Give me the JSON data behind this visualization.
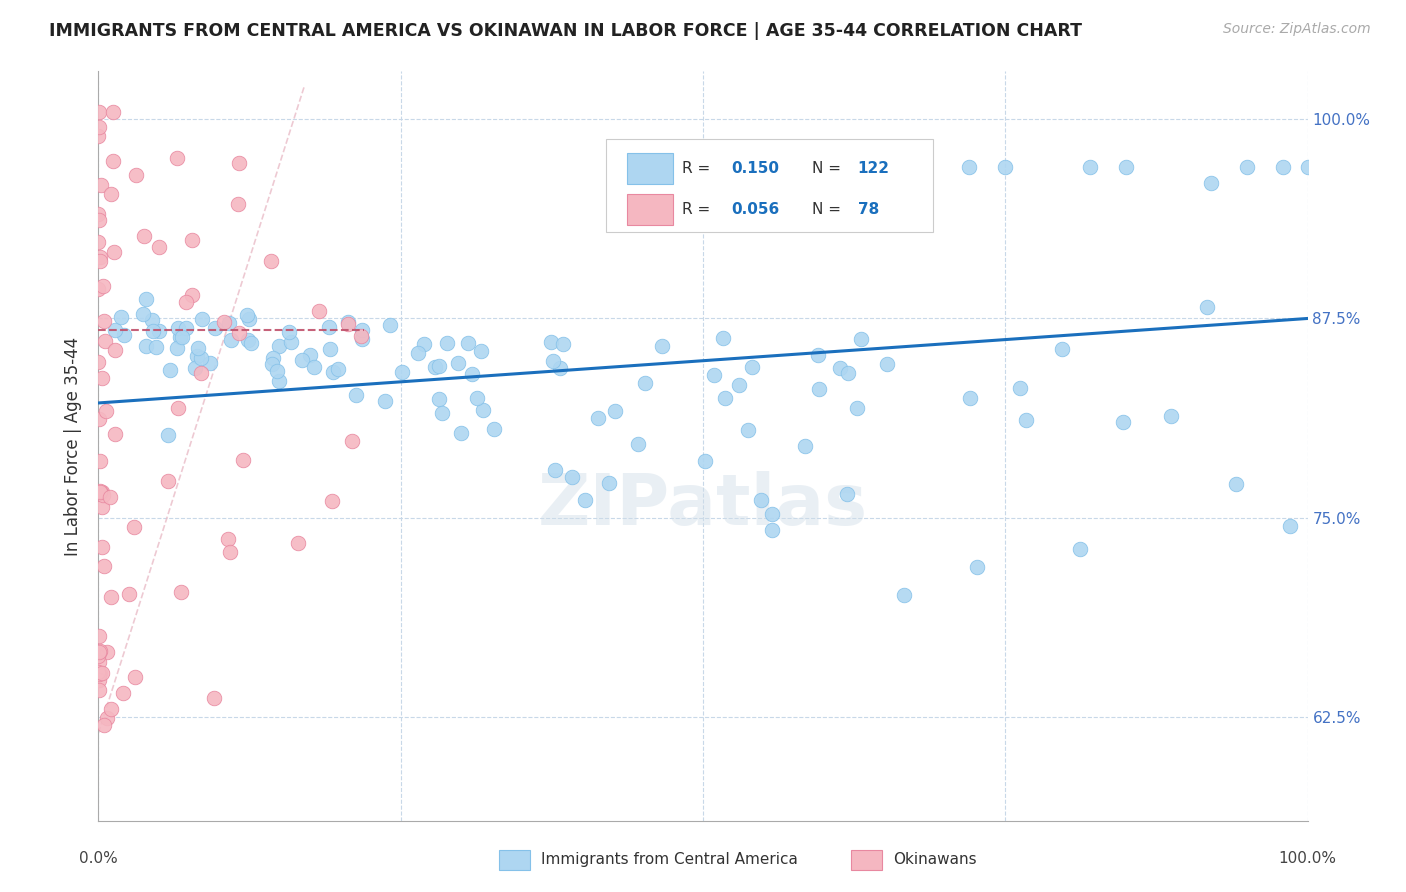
{
  "title": "IMMIGRANTS FROM CENTRAL AMERICA VS OKINAWAN IN LABOR FORCE | AGE 35-44 CORRELATION CHART",
  "source": "Source: ZipAtlas.com",
  "ylabel": "In Labor Force | Age 35-44",
  "xlim": [
    0.0,
    1.0
  ],
  "ylim": [
    0.56,
    1.03
  ],
  "ytick_positions": [
    0.625,
    0.75,
    0.875,
    1.0
  ],
  "ytick_labels": [
    "62.5%",
    "75.0%",
    "87.5%",
    "100.0%"
  ],
  "blue_color": "#aed6f1",
  "blue_edge_color": "#85c1e9",
  "blue_line_color": "#1a6fbd",
  "pink_color": "#f5b7c1",
  "pink_edge_color": "#e888a0",
  "pink_line_color": "#c0506a",
  "diag_line_color": "#e0b0be",
  "watermark": "ZIPatlas",
  "legend_R1": "0.150",
  "legend_N1": "122",
  "legend_R2": "0.056",
  "legend_N2": "78",
  "blue_R": 0.15,
  "pink_R": 0.056,
  "blue_N": 122,
  "pink_N": 78,
  "blue_line_start_y": 0.822,
  "blue_line_end_y": 0.875,
  "pink_line_start_y": 0.868,
  "pink_line_end_y": 0.868
}
